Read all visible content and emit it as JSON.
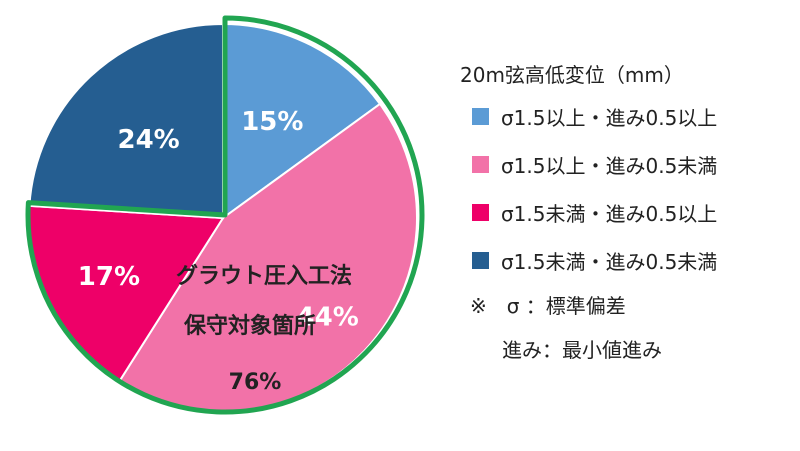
{
  "chart_data": {
    "type": "pie",
    "title": "",
    "slices": [
      {
        "label": "σ1.5以上・進み0.5以上",
        "value": 15,
        "display": "15%",
        "color": "#5b9bd5"
      },
      {
        "label": "σ1.5以上・進み0.5未満",
        "value": 44,
        "display": "44%",
        "color": "#f272a8"
      },
      {
        "label": "σ1.5未満・進み0.5以上",
        "value": 17,
        "display": "17%",
        "color": "#ee0068"
      },
      {
        "label": "σ1.5未満・進み0.5未満",
        "value": 24,
        "display": "24%",
        "color": "#255e91"
      }
    ],
    "highlight": {
      "line1": "グラウト圧入工法",
      "line2": "保守対象箇所",
      "value": "76%",
      "color": "#21a551"
    },
    "legend": {
      "title": "20m弦高低変位（mm）",
      "placement": "right"
    },
    "notes": [
      "※　σ ：標準偏差",
      "進み：最小値進み"
    ]
  }
}
